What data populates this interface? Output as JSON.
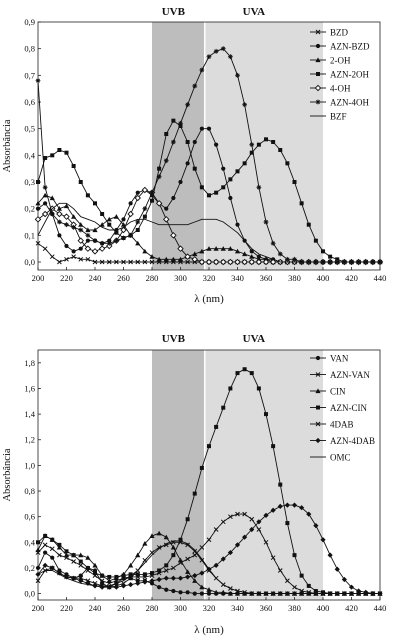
{
  "chart_data": [
    {
      "type": "line",
      "xlabel": "λ (nm)",
      "ylabel": "Absorbância",
      "xlim": [
        200,
        440
      ],
      "ylim": [
        -0.03,
        0.9
      ],
      "x_ticks": [
        "200",
        "220",
        "240",
        "260",
        "280",
        "300",
        "320",
        "340",
        "360",
        "380",
        "400",
        "420",
        "440"
      ],
      "y_ticks": [
        "0,0",
        "0,1",
        "0,2",
        "0,3",
        "0,4",
        "0,5",
        "0,6",
        "0,7",
        "0,8",
        "0,9"
      ],
      "y_tick_values": [
        0,
        0.1,
        0.2,
        0.3,
        0.4,
        0.5,
        0.6,
        0.7,
        0.8,
        0.9
      ],
      "grid": false,
      "legend_position": "top-right",
      "regions": [
        {
          "label": "UVB",
          "x": [
            280,
            317
          ],
          "color": "#bdbdbd"
        },
        {
          "label": "UVA",
          "x": [
            317,
            400
          ],
          "color": "#dcdcdc"
        }
      ],
      "x": [
        200,
        205,
        210,
        215,
        220,
        225,
        230,
        235,
        240,
        245,
        250,
        255,
        260,
        265,
        270,
        275,
        280,
        285,
        290,
        295,
        300,
        305,
        310,
        315,
        320,
        325,
        330,
        335,
        340,
        345,
        350,
        355,
        360,
        365,
        370,
        375,
        380,
        385,
        390,
        395,
        400,
        405,
        410,
        415,
        420,
        425,
        430,
        435,
        440
      ],
      "series": [
        {
          "name": "BZD",
          "marker": "x",
          "values": [
            0.07,
            0.05,
            0.02,
            0.0,
            0.01,
            0.02,
            0.01,
            0.01,
            0.0,
            0.0,
            0.0,
            0.0,
            0.0,
            0.0,
            0.0,
            0.0,
            0.0,
            0.0,
            0.0,
            0.0,
            0.0,
            0.0,
            0.0,
            0.0,
            0.0,
            0.0,
            0.0,
            0.0,
            0.0,
            0.0,
            0.0,
            0.0,
            0.0,
            0.0,
            0.0,
            0.0,
            0.0,
            0.0,
            0.0,
            0.0,
            0.0,
            0.0,
            0.0,
            0.0,
            0.0,
            0.0,
            0.0,
            0.0,
            0.0
          ]
        },
        {
          "name": "AZN-BZD",
          "marker": "circle",
          "values": [
            0.2,
            0.22,
            0.18,
            0.1,
            0.06,
            0.04,
            0.05,
            0.08,
            0.08,
            0.07,
            0.08,
            0.12,
            0.16,
            0.22,
            0.26,
            0.27,
            0.25,
            0.22,
            0.2,
            0.24,
            0.3,
            0.37,
            0.45,
            0.5,
            0.5,
            0.44,
            0.35,
            0.24,
            0.14,
            0.08,
            0.04,
            0.02,
            0.01,
            0.01,
            0.0,
            0.0,
            0.0,
            0.0,
            0.0,
            0.0,
            0.0,
            0.0,
            0.0,
            0.0,
            0.0,
            0.0,
            0.0,
            0.0,
            0.0
          ]
        },
        {
          "name": "2-OH",
          "marker": "triangle",
          "values": [
            0.22,
            0.25,
            0.24,
            0.2,
            0.21,
            0.17,
            0.14,
            0.12,
            0.12,
            0.14,
            0.16,
            0.17,
            0.14,
            0.1,
            0.07,
            0.04,
            0.02,
            0.01,
            0.01,
            0.01,
            0.01,
            0.02,
            0.03,
            0.04,
            0.05,
            0.05,
            0.05,
            0.05,
            0.04,
            0.03,
            0.02,
            0.01,
            0.01,
            0.0,
            0.0,
            0.0,
            0.0,
            0.0,
            0.0,
            0.0,
            0.0,
            0.0,
            0.0,
            0.0,
            0.0,
            0.0,
            0.0,
            0.0,
            0.0
          ]
        },
        {
          "name": "AZN-2OH",
          "marker": "square",
          "values": [
            0.3,
            0.39,
            0.4,
            0.42,
            0.41,
            0.36,
            0.3,
            0.25,
            0.22,
            0.18,
            0.14,
            0.11,
            0.09,
            0.1,
            0.12,
            0.17,
            0.23,
            0.35,
            0.48,
            0.53,
            0.51,
            0.45,
            0.35,
            0.28,
            0.25,
            0.26,
            0.28,
            0.31,
            0.34,
            0.37,
            0.41,
            0.44,
            0.46,
            0.45,
            0.42,
            0.37,
            0.3,
            0.22,
            0.14,
            0.08,
            0.04,
            0.02,
            0.01,
            0.0,
            0.0,
            0.0,
            0.0,
            0.0,
            0.0
          ]
        },
        {
          "name": "4-OH",
          "marker": "diamond-open",
          "values": [
            0.16,
            0.18,
            0.2,
            0.18,
            0.17,
            0.14,
            0.08,
            0.05,
            0.04,
            0.05,
            0.06,
            0.08,
            0.12,
            0.18,
            0.24,
            0.27,
            0.26,
            0.22,
            0.16,
            0.1,
            0.05,
            0.02,
            0.01,
            0.0,
            0.0,
            0.0,
            0.0,
            0.0,
            0.0,
            0.0,
            0.0,
            0.0,
            0.0,
            0.0,
            0.0,
            0.0,
            0.0,
            0.0,
            0.0,
            0.0,
            0.0,
            0.0,
            0.0,
            0.0,
            0.0,
            0.0,
            0.0,
            0.0,
            0.0
          ]
        },
        {
          "name": "AZN-4OH",
          "marker": "star",
          "values": [
            0.68,
            0.28,
            0.18,
            0.15,
            0.14,
            0.13,
            0.12,
            0.1,
            0.08,
            0.07,
            0.07,
            0.08,
            0.09,
            0.1,
            0.15,
            0.2,
            0.26,
            0.32,
            0.38,
            0.45,
            0.52,
            0.59,
            0.66,
            0.72,
            0.77,
            0.79,
            0.8,
            0.77,
            0.7,
            0.59,
            0.44,
            0.28,
            0.15,
            0.07,
            0.03,
            0.01,
            0.01,
            0.0,
            0.0,
            0.0,
            0.0,
            0.0,
            0.0,
            0.0,
            0.0,
            0.0,
            0.0,
            0.0,
            0.0
          ]
        },
        {
          "name": "BZF",
          "marker": "none",
          "values": [
            0.1,
            0.15,
            0.2,
            0.22,
            0.22,
            0.2,
            0.17,
            0.16,
            0.15,
            0.13,
            0.12,
            0.12,
            0.13,
            0.15,
            0.16,
            0.16,
            0.15,
            0.14,
            0.14,
            0.14,
            0.14,
            0.14,
            0.15,
            0.16,
            0.16,
            0.16,
            0.15,
            0.13,
            0.11,
            0.08,
            0.05,
            0.03,
            0.02,
            0.01,
            0.0,
            0.0,
            0.0,
            0.0,
            0.0,
            0.0,
            0.0,
            0.0,
            0.0,
            0.0,
            0.0,
            0.0,
            0.0,
            0.0,
            0.0
          ]
        }
      ]
    },
    {
      "type": "line",
      "xlabel": "λ (nm)",
      "ylabel": "Absorbância",
      "xlim": [
        200,
        440
      ],
      "ylim": [
        -0.05,
        1.9
      ],
      "x_ticks": [
        "200",
        "220",
        "240",
        "260",
        "280",
        "300",
        "320",
        "340",
        "360",
        "380",
        "400",
        "420",
        "440"
      ],
      "y_ticks": [
        "0,0",
        "0,2",
        "0,4",
        "0,6",
        "0,8",
        "1,0",
        "1,2",
        "1,4",
        "1,6",
        "1,8"
      ],
      "y_tick_values": [
        0,
        0.2,
        0.4,
        0.6,
        0.8,
        1.0,
        1.2,
        1.4,
        1.6,
        1.8
      ],
      "grid": false,
      "legend_position": "top-right",
      "regions": [
        {
          "label": "UVB",
          "x": [
            280,
            317
          ],
          "color": "#bdbdbd"
        },
        {
          "label": "UVA",
          "x": [
            317,
            400
          ],
          "color": "#dcdcdc"
        }
      ],
      "x": [
        200,
        205,
        210,
        215,
        220,
        225,
        230,
        235,
        240,
        245,
        250,
        255,
        260,
        265,
        270,
        275,
        280,
        285,
        290,
        295,
        300,
        305,
        310,
        315,
        320,
        325,
        330,
        335,
        340,
        345,
        350,
        355,
        360,
        365,
        370,
        375,
        380,
        385,
        390,
        395,
        400,
        405,
        410,
        415,
        420,
        425,
        430,
        435,
        440
      ],
      "series": [
        {
          "name": "VAN",
          "marker": "circle",
          "values": [
            0.2,
            0.32,
            0.28,
            0.18,
            0.15,
            0.12,
            0.14,
            0.2,
            0.18,
            0.08,
            0.05,
            0.08,
            0.12,
            0.12,
            0.1,
            0.1,
            0.08,
            0.05,
            0.03,
            0.02,
            0.01,
            0.01,
            0.0,
            0.0,
            0.0,
            0.0,
            0.0,
            0.0,
            0.0,
            0.0,
            0.0,
            0.0,
            0.0,
            0.0,
            0.0,
            0.0,
            0.0,
            0.0,
            0.0,
            0.0,
            0.0,
            0.0,
            0.0,
            0.0,
            0.0,
            0.0,
            0.0,
            0.0,
            0.0
          ]
        },
        {
          "name": "AZN-VAN",
          "marker": "x",
          "values": [
            0.32,
            0.38,
            0.35,
            0.3,
            0.28,
            0.25,
            0.22,
            0.18,
            0.14,
            0.1,
            0.08,
            0.1,
            0.12,
            0.13,
            0.13,
            0.13,
            0.14,
            0.16,
            0.18,
            0.2,
            0.24,
            0.27,
            0.3,
            0.36,
            0.42,
            0.5,
            0.56,
            0.6,
            0.62,
            0.62,
            0.58,
            0.5,
            0.4,
            0.28,
            0.18,
            0.1,
            0.05,
            0.02,
            0.01,
            0.0,
            0.0,
            0.0,
            0.0,
            0.0,
            0.0,
            0.0,
            0.0,
            0.0,
            0.0
          ]
        },
        {
          "name": "CIN",
          "marker": "triangle",
          "values": [
            0.34,
            0.45,
            0.42,
            0.36,
            0.3,
            0.3,
            0.3,
            0.28,
            0.22,
            0.14,
            0.1,
            0.12,
            0.15,
            0.22,
            0.3,
            0.39,
            0.45,
            0.47,
            0.44,
            0.36,
            0.26,
            0.17,
            0.1,
            0.05,
            0.03,
            0.01,
            0.01,
            0.0,
            0.0,
            0.0,
            0.0,
            0.0,
            0.0,
            0.0,
            0.0,
            0.0,
            0.0,
            0.0,
            0.0,
            0.0,
            0.0,
            0.0,
            0.0,
            0.0,
            0.0,
            0.0,
            0.0,
            0.0,
            0.0
          ]
        },
        {
          "name": "AZN-CIN",
          "marker": "square",
          "values": [
            0.4,
            0.45,
            0.42,
            0.38,
            0.33,
            0.3,
            0.25,
            0.2,
            0.16,
            0.14,
            0.13,
            0.13,
            0.14,
            0.15,
            0.15,
            0.15,
            0.16,
            0.18,
            0.22,
            0.3,
            0.42,
            0.58,
            0.78,
            0.98,
            1.15,
            1.3,
            1.45,
            1.6,
            1.72,
            1.75,
            1.72,
            1.6,
            1.4,
            1.15,
            0.85,
            0.55,
            0.3,
            0.14,
            0.06,
            0.02,
            0.01,
            0.0,
            0.0,
            0.0,
            0.0,
            0.0,
            0.0,
            0.0,
            0.0
          ]
        },
        {
          "name": "4DAB",
          "marker": "x",
          "values": [
            0.1,
            0.18,
            0.2,
            0.16,
            0.13,
            0.12,
            0.12,
            0.1,
            0.08,
            0.06,
            0.05,
            0.06,
            0.08,
            0.12,
            0.18,
            0.26,
            0.32,
            0.36,
            0.38,
            0.4,
            0.4,
            0.38,
            0.33,
            0.26,
            0.18,
            0.12,
            0.07,
            0.04,
            0.02,
            0.01,
            0.0,
            0.0,
            0.0,
            0.0,
            0.0,
            0.0,
            0.0,
            0.0,
            0.0,
            0.0,
            0.0,
            0.0,
            0.0,
            0.0,
            0.0,
            0.0,
            0.0,
            0.0,
            0.0
          ]
        },
        {
          "name": "AZN-4DAB",
          "marker": "diamond",
          "values": [
            0.15,
            0.22,
            0.2,
            0.16,
            0.13,
            0.12,
            0.1,
            0.08,
            0.06,
            0.05,
            0.05,
            0.05,
            0.06,
            0.07,
            0.08,
            0.09,
            0.1,
            0.11,
            0.12,
            0.12,
            0.12,
            0.13,
            0.14,
            0.16,
            0.19,
            0.22,
            0.27,
            0.32,
            0.38,
            0.44,
            0.5,
            0.56,
            0.61,
            0.65,
            0.68,
            0.69,
            0.69,
            0.67,
            0.62,
            0.53,
            0.42,
            0.3,
            0.19,
            0.11,
            0.05,
            0.02,
            0.01,
            0.0,
            0.0
          ]
        },
        {
          "name": "OMC",
          "marker": "none",
          "values": [
            0.15,
            0.18,
            0.18,
            0.15,
            0.12,
            0.1,
            0.08,
            0.07,
            0.06,
            0.06,
            0.06,
            0.08,
            0.1,
            0.14,
            0.18,
            0.24,
            0.3,
            0.35,
            0.39,
            0.41,
            0.41,
            0.39,
            0.34,
            0.27,
            0.19,
            0.12,
            0.07,
            0.04,
            0.02,
            0.01,
            0.0,
            0.0,
            0.0,
            0.0,
            0.0,
            0.0,
            0.0,
            0.0,
            0.0,
            0.0,
            0.0,
            0.0,
            0.0,
            0.0,
            0.0,
            0.0,
            0.0,
            0.0,
            0.0
          ]
        }
      ]
    }
  ]
}
